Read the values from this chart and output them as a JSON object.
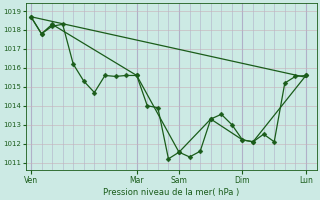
{
  "bg_color": "#cceae4",
  "grid_color_v": "#b0b0c8",
  "grid_color_h": "#c8b0b8",
  "line_color": "#1a5c1a",
  "ylabel": "Pression niveau de la mer( hPa )",
  "yticks": [
    1011,
    1012,
    1013,
    1014,
    1015,
    1016,
    1017,
    1018,
    1019
  ],
  "ylim": [
    1010.6,
    1019.4
  ],
  "xtick_labels": [
    "Ven",
    "Mar",
    "Sam",
    "Dim",
    "Lun"
  ],
  "xtick_positions": [
    0,
    10,
    14,
    20,
    26
  ],
  "xlim": [
    -0.5,
    27
  ],
  "num_minor_v": 27,
  "series1_x": [
    0,
    1,
    2,
    3,
    4,
    5,
    6,
    7,
    8,
    9,
    10,
    11,
    12,
    13,
    14,
    15,
    16,
    17,
    18,
    19,
    20,
    21,
    22,
    23,
    24,
    25,
    26
  ],
  "series1_y": [
    1018.7,
    1017.8,
    1018.2,
    1018.3,
    1016.2,
    1015.3,
    1014.7,
    1015.6,
    1015.55,
    1015.6,
    1015.6,
    1014.0,
    1013.9,
    1011.2,
    1011.55,
    1011.3,
    1011.6,
    1013.3,
    1013.55,
    1013.0,
    1012.2,
    1012.1,
    1012.5,
    1012.1,
    1015.2,
    1015.55,
    1015.6
  ],
  "series2_x": [
    0,
    26
  ],
  "series2_y": [
    1018.7,
    1015.5
  ],
  "series3_x": [
    0,
    1,
    2,
    10,
    14,
    17,
    20,
    21,
    26
  ],
  "series3_y": [
    1018.7,
    1017.8,
    1018.3,
    1015.6,
    1011.55,
    1013.3,
    1012.2,
    1012.1,
    1015.6
  ],
  "vline_major_positions": [
    0,
    10,
    14,
    20,
    26
  ],
  "figsize": [
    3.2,
    2.0
  ],
  "dpi": 100
}
